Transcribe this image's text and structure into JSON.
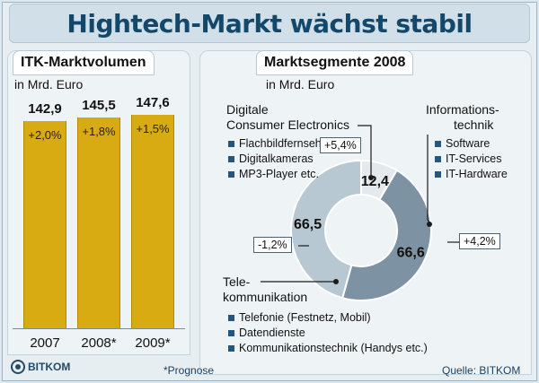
{
  "header": {
    "title": "Hightech-Markt wächst stabil"
  },
  "chart_data": [
    {
      "type": "bar",
      "title": "ITK-Marktvolumen",
      "subtitle": "in Mrd. Euro",
      "categories": [
        "2007",
        "2008*",
        "2009*"
      ],
      "values": [
        142.9,
        145.5,
        147.6
      ],
      "value_labels": [
        "142,9",
        "145,5",
        "147,6"
      ],
      "growth_labels": [
        "+2,0%",
        "+1,8%",
        "+1,5%"
      ],
      "ylim": [
        0,
        150
      ],
      "colors": {
        "bar": "#d9ab12"
      }
    },
    {
      "type": "pie",
      "style": "donut",
      "title": "Marktsegmente 2008",
      "subtitle": "in Mrd. Euro",
      "slices": [
        {
          "label_lines": [
            "Digitale",
            "Consumer Electronics"
          ],
          "value": 12.4,
          "value_label": "12,4",
          "growth": "+5,4%",
          "color": "#e3e9ed",
          "items": [
            "Flachbildfernseher",
            "Digitalkameras",
            "MP3-Player etc."
          ]
        },
        {
          "label_lines": [
            "Informations-",
            "technik"
          ],
          "value": 66.6,
          "value_label": "66,6",
          "growth": "+4,2%",
          "color": "#7d93a4",
          "items": [
            "Software",
            "IT-Services",
            "IT-Hardware"
          ]
        },
        {
          "label_lines": [
            "Tele-",
            "kommunikation"
          ],
          "value": 66.5,
          "value_label": "66,5",
          "growth": "-1,2%",
          "color": "#b8c8d3",
          "items": [
            "Telefonie (Festnetz, Mobil)",
            "Datendienste",
            "Kommunikationstechnik (Handys etc.)"
          ]
        }
      ],
      "colors": {
        "marker": "#26567e",
        "line": "#1b1b1b"
      }
    }
  ],
  "footer": {
    "note": "*Prognose",
    "source": "Quelle: BITKOM",
    "logo": "BITKOM"
  }
}
